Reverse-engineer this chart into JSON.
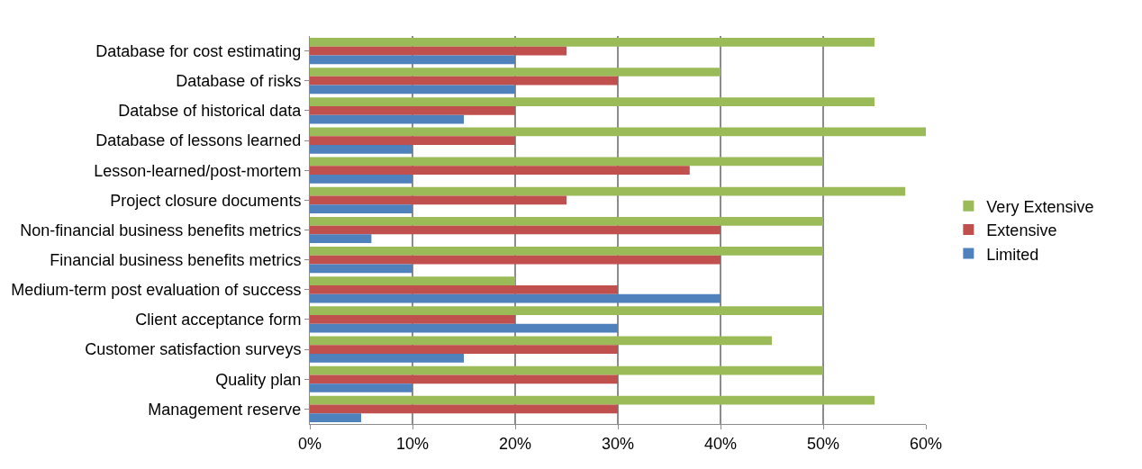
{
  "chart_data": {
    "type": "bar",
    "orientation": "horizontal",
    "categories": [
      "Database for cost estimating",
      "Database of risks",
      "Databse of historical data",
      "Database of lessons learned",
      "Lesson-learned/post-mortem",
      "Project closure documents",
      "Non-financial business benefits metrics",
      "Financial business benefits metrics",
      "Medium-term post evaluation of success",
      "Client acceptance form",
      "Customer satisfaction surveys",
      "Quality plan",
      "Management reserve"
    ],
    "series": [
      {
        "name": "Very Extensive",
        "color": "#9bbb59",
        "values": [
          55,
          40,
          55,
          60,
          50,
          58,
          50,
          50,
          20,
          50,
          45,
          50,
          55
        ]
      },
      {
        "name": "Extensive",
        "color": "#c0504d",
        "values": [
          25,
          30,
          20,
          20,
          37,
          25,
          40,
          40,
          30,
          20,
          30,
          30,
          30
        ]
      },
      {
        "name": "Limited",
        "color": "#4f81bd",
        "values": [
          20,
          20,
          15,
          10,
          10,
          10,
          6,
          10,
          40,
          30,
          15,
          10,
          5
        ]
      }
    ],
    "xlim": [
      0,
      60
    ],
    "xticks": [
      {
        "value": 0,
        "label": "0%"
      },
      {
        "value": 10,
        "label": "10%"
      },
      {
        "value": 20,
        "label": "20%"
      },
      {
        "value": 30,
        "label": "30%"
      },
      {
        "value": 40,
        "label": "40%"
      },
      {
        "value": 50,
        "label": "50%"
      },
      {
        "value": 60,
        "label": "60%"
      }
    ],
    "grid": "x",
    "legend": "right"
  }
}
